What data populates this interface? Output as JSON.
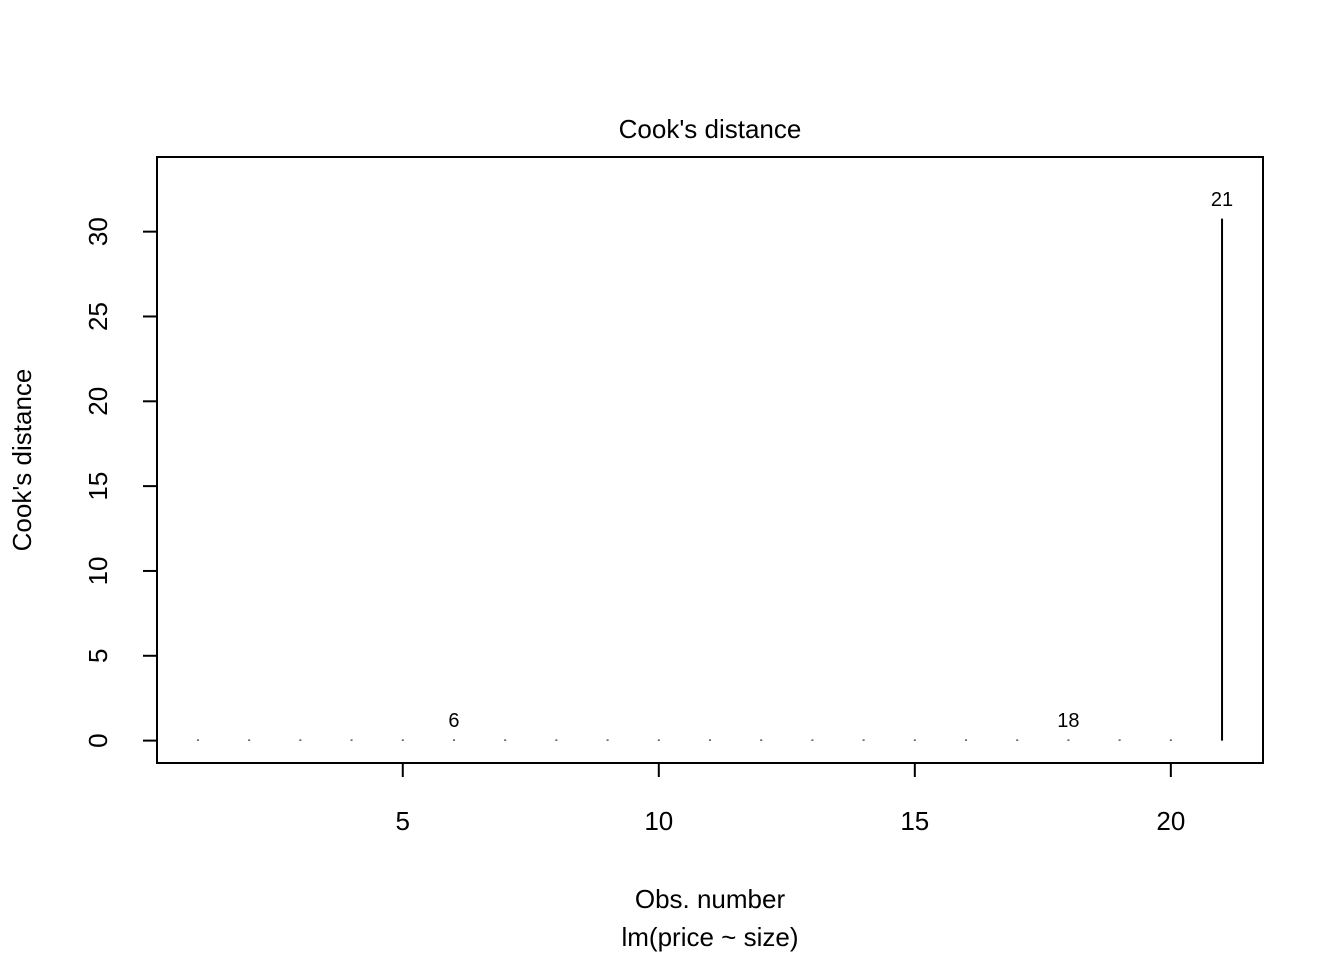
{
  "chart_data": {
    "type": "bar",
    "title": "Cook's distance",
    "xlabel": "Obs. number",
    "subtitle": "lm(price ~ size)",
    "ylabel": "Cook's distance",
    "x": [
      1,
      2,
      3,
      4,
      5,
      6,
      7,
      8,
      9,
      10,
      11,
      12,
      13,
      14,
      15,
      16,
      17,
      18,
      19,
      20,
      21
    ],
    "values": [
      0.01,
      0.02,
      0.01,
      0.02,
      0.03,
      0.06,
      0.01,
      0.01,
      0.01,
      0.02,
      0.03,
      0.01,
      0.01,
      0.01,
      0.02,
      0.01,
      0.01,
      0.05,
      0.01,
      0.03,
      30.77
    ],
    "color": "#000000",
    "annotations": [
      {
        "x": 6,
        "label": "6"
      },
      {
        "x": 18,
        "label": "18"
      },
      {
        "x": 21,
        "label": "21"
      }
    ],
    "xlim": [
      0.2,
      21.8
    ],
    "xticks": [
      5,
      10,
      15,
      20
    ],
    "ylim": [
      -1.32,
      34.4
    ],
    "yticks": [
      0,
      5,
      10,
      15,
      20,
      25,
      30
    ],
    "grid": false
  }
}
